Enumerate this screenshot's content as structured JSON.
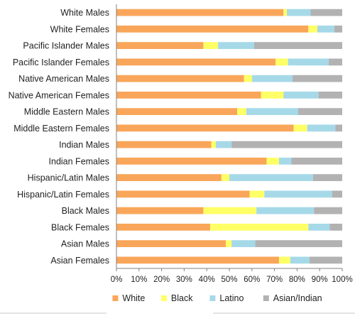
{
  "chart_data": {
    "type": "bar",
    "orientation": "horizontal",
    "stacked": "percent",
    "categories": [
      "White Males",
      "White Females",
      "Pacific Islander Males",
      "Pacific Islander Females",
      "Native American Males",
      "Native American Females",
      "Middle Eastern Males",
      "Middle Eastern Females",
      "Indian Males",
      "Indian Females",
      "Hispanic/Latin Males",
      "Hispanic/Latin Females",
      "Black Males",
      "Black Females",
      "Asian Males",
      "Asian Females"
    ],
    "series": [
      {
        "name": "White",
        "color": "#F9A65A",
        "values": [
          74,
          85,
          38.5,
          70.5,
          56.5,
          64,
          53.5,
          78.5,
          42,
          66.5,
          46.5,
          59,
          38.5,
          41.5,
          48.5,
          72
        ]
      },
      {
        "name": "Black",
        "color": "#FFFF66",
        "values": [
          1.5,
          4,
          6.5,
          5.5,
          3.5,
          10,
          4,
          6,
          2,
          5.5,
          3.5,
          6.5,
          23.5,
          43.5,
          2.5,
          5
        ]
      },
      {
        "name": "Latino",
        "color": "#A6D9E8",
        "values": [
          10.5,
          7.5,
          16,
          18,
          18,
          15.5,
          23,
          12.5,
          7,
          5.5,
          37,
          30,
          25.5,
          9.5,
          10.5,
          8.5
        ]
      },
      {
        "name": "Asian/Indian",
        "color": "#B2B2B2",
        "values": [
          14,
          3.5,
          39,
          6,
          22,
          10.5,
          19.5,
          3,
          49,
          22.5,
          13,
          4.5,
          12.5,
          5.5,
          38.5,
          14.5
        ]
      }
    ],
    "x_ticks": [
      "0%",
      "10%",
      "20%",
      "30%",
      "40%",
      "50%",
      "60%",
      "70%",
      "80%",
      "90%",
      "100%"
    ],
    "xlim": [
      0,
      100
    ],
    "grid": false,
    "legend": {
      "position": "bottom"
    },
    "title": "",
    "xlabel": "",
    "ylabel": ""
  }
}
